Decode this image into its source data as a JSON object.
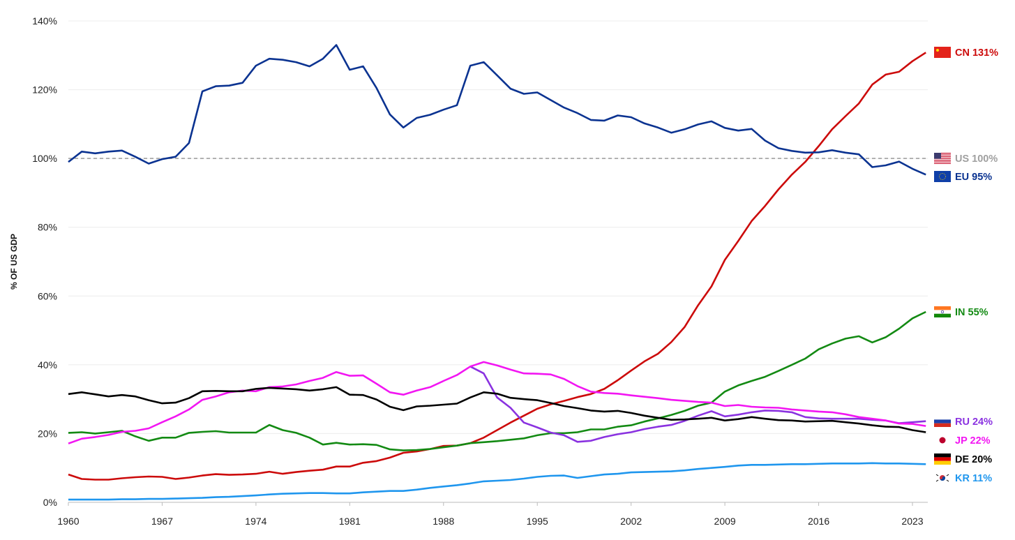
{
  "chart_data": {
    "type": "line",
    "title": "",
    "xlabel": "",
    "ylabel": "% OF US GDP",
    "xlim": [
      1960,
      2024
    ],
    "ylim": [
      0,
      140
    ],
    "x_ticks": [
      "1960",
      "1967",
      "1974",
      "1981",
      "1988",
      "1995",
      "2002",
      "2009",
      "2016",
      "2023"
    ],
    "y_ticks": [
      "0%",
      "20%",
      "40%",
      "60%",
      "80%",
      "100%",
      "120%",
      "140%"
    ],
    "grid": "horizontal",
    "legend": "end-labels right",
    "series": [
      {
        "name": "CN",
        "label": "CN 131%",
        "color": "#cc0a0a",
        "flag": "china-flag-icon",
        "start": 1960,
        "values": [
          8.1,
          6.8,
          6.6,
          6.6,
          7,
          7.3,
          7.5,
          7.4,
          6.8,
          7.2,
          7.8,
          8.2,
          8,
          8.1,
          8.3,
          8.9,
          8.3,
          8.8,
          9.2,
          9.5,
          10.4,
          10.4,
          11.5,
          12,
          13,
          14.4,
          14.8,
          15.5,
          16.4,
          16.5,
          17.2,
          18.8,
          21,
          23.2,
          25.2,
          27.2,
          28.5,
          29.5,
          30.6,
          31.5,
          33,
          35.5,
          38.3,
          41,
          43.2,
          46.6,
          51,
          57.3,
          62.8,
          70.5,
          76,
          81.8,
          86.2,
          91,
          95.3,
          99,
          103.6,
          108.5,
          112.3,
          116,
          121.5,
          124.4,
          125.2,
          128.3,
          130.8
        ]
      },
      {
        "name": "US",
        "label": "US 100%",
        "color": "#a0a0a0",
        "flag": "usa-flag-icon",
        "start": 1960,
        "dashed": true,
        "values": [
          100,
          100
        ]
      },
      {
        "name": "EU",
        "label": "EU 95%",
        "color": "#0b3391",
        "flag": "eu-flag-icon",
        "start": 1960,
        "values": [
          99,
          102,
          101.5,
          102,
          102.3,
          100.5,
          98.5,
          99.8,
          100.5,
          104.5,
          119.5,
          121,
          121.2,
          122,
          127,
          129,
          128.7,
          128,
          126.8,
          129,
          133,
          125.8,
          126.8,
          120.5,
          112.8,
          109,
          111.8,
          112.7,
          114.2,
          115.5,
          127,
          128,
          124.2,
          120.3,
          118.8,
          119.2,
          117,
          114.8,
          113.2,
          111.2,
          111,
          112.5,
          112,
          110.2,
          109,
          107.5,
          108.5,
          109.9,
          110.8,
          108.9,
          108.1,
          108.6,
          105.2,
          103,
          102.2,
          101.7,
          101.8,
          102.4,
          101.7,
          101.2,
          97.5,
          98,
          99.1,
          97,
          95.3
        ]
      },
      {
        "name": "IN",
        "label": "IN 55%",
        "color": "#138a13",
        "flag": "india-flag-icon",
        "start": 1960,
        "values": [
          20.2,
          20.4,
          20,
          20.4,
          20.8,
          19.2,
          17.9,
          18.8,
          18.8,
          20.2,
          20.5,
          20.7,
          20.3,
          20.3,
          20.3,
          22.5,
          21,
          20.2,
          18.8,
          16.8,
          17.3,
          16.8,
          16.9,
          16.7,
          15.4,
          15.1,
          15.2,
          15.5,
          16,
          16.5,
          17.2,
          17.5,
          17.8,
          18.2,
          18.6,
          19.5,
          20.1,
          20.1,
          20.4,
          21.2,
          21.2,
          22,
          22.4,
          23.5,
          24.4,
          25.4,
          26.6,
          28.1,
          29,
          32.2,
          34,
          35.3,
          36.5,
          38.2,
          40,
          41.8,
          44.5,
          46.2,
          47.6,
          48.3,
          46.5,
          48,
          50.5,
          53.5,
          55.4
        ]
      },
      {
        "name": "RU",
        "label": "RU 24%",
        "color": "#8a32e0",
        "flag": "russia-flag-icon",
        "start": 1990,
        "values": [
          39.5,
          37.5,
          30.5,
          27.5,
          23.2,
          21.8,
          20.3,
          19.5,
          17.6,
          17.9,
          19,
          19.8,
          20.4,
          21.3,
          22,
          22.5,
          23.7,
          25.2,
          26.5,
          25,
          25.5,
          26.2,
          26.7,
          26.6,
          26.2,
          24.8,
          24.4,
          24.3,
          24.3,
          24.3,
          24,
          23.8,
          23,
          23.3,
          23.6
        ]
      },
      {
        "name": "JP",
        "label": "JP 22%",
        "color": "#f216f2",
        "flag": "japan-flag-icon",
        "start": 1960,
        "values": [
          17.1,
          18.5,
          19,
          19.6,
          20.5,
          20.8,
          21.5,
          23.3,
          25,
          27,
          29.8,
          30.8,
          32,
          32.5,
          32.3,
          33.5,
          33.7,
          34.3,
          35.3,
          36.2,
          37.9,
          36.8,
          36.9,
          34.5,
          32,
          31.3,
          32.5,
          33.5,
          35.3,
          37,
          39.5,
          40.8,
          39.8,
          38.6,
          37.5,
          37.4,
          37.2,
          35.9,
          33.8,
          32.2,
          31.8,
          31.6,
          31.1,
          30.7,
          30.3,
          29.8,
          29.5,
          29.2,
          29,
          28,
          28.3,
          27.8,
          27.6,
          27.5,
          27,
          26.7,
          26.4,
          26.2,
          25.6,
          24.8,
          24.3,
          23.8,
          22.9,
          22.8,
          22.2
        ]
      },
      {
        "name": "DE",
        "label": "DE 20%",
        "color": "#000000",
        "flag": "germany-flag-icon",
        "start": 1960,
        "values": [
          31.5,
          32,
          31.4,
          30.8,
          31.2,
          30.8,
          29.7,
          28.8,
          29,
          30.3,
          32.3,
          32.4,
          32.3,
          32.3,
          33,
          33.3,
          33.1,
          32.9,
          32.5,
          32.9,
          33.5,
          31.3,
          31.2,
          29.9,
          27.8,
          26.8,
          27.9,
          28.1,
          28.4,
          28.7,
          30.5,
          32,
          31.6,
          30.4,
          30,
          29.7,
          28.9,
          28,
          27.4,
          26.7,
          26.4,
          26.6,
          26,
          25.2,
          24.6,
          24,
          24.1,
          24.3,
          24.6,
          23.8,
          24.2,
          24.8,
          24.3,
          23.9,
          23.8,
          23.5,
          23.6,
          23.7,
          23.3,
          22.9,
          22.4,
          22,
          21.9,
          21,
          20.4
        ]
      },
      {
        "name": "KR",
        "label": "KR 11%",
        "color": "#1f96ee",
        "flag": "korea-flag-icon",
        "start": 1960,
        "values": [
          0.8,
          0.8,
          0.8,
          0.8,
          0.9,
          0.9,
          1,
          1,
          1.1,
          1.2,
          1.3,
          1.5,
          1.6,
          1.8,
          2,
          2.3,
          2.5,
          2.6,
          2.7,
          2.7,
          2.6,
          2.6,
          2.9,
          3.1,
          3.3,
          3.3,
          3.7,
          4.2,
          4.6,
          5,
          5.5,
          6.1,
          6.3,
          6.5,
          6.9,
          7.4,
          7.7,
          7.8,
          7.1,
          7.6,
          8.1,
          8.3,
          8.7,
          8.8,
          8.9,
          9,
          9.3,
          9.7,
          10,
          10.3,
          10.7,
          10.9,
          10.9,
          11,
          11.1,
          11.1,
          11.2,
          11.3,
          11.3,
          11.3,
          11.4,
          11.3,
          11.3,
          11.2,
          11.1
        ]
      }
    ]
  }
}
